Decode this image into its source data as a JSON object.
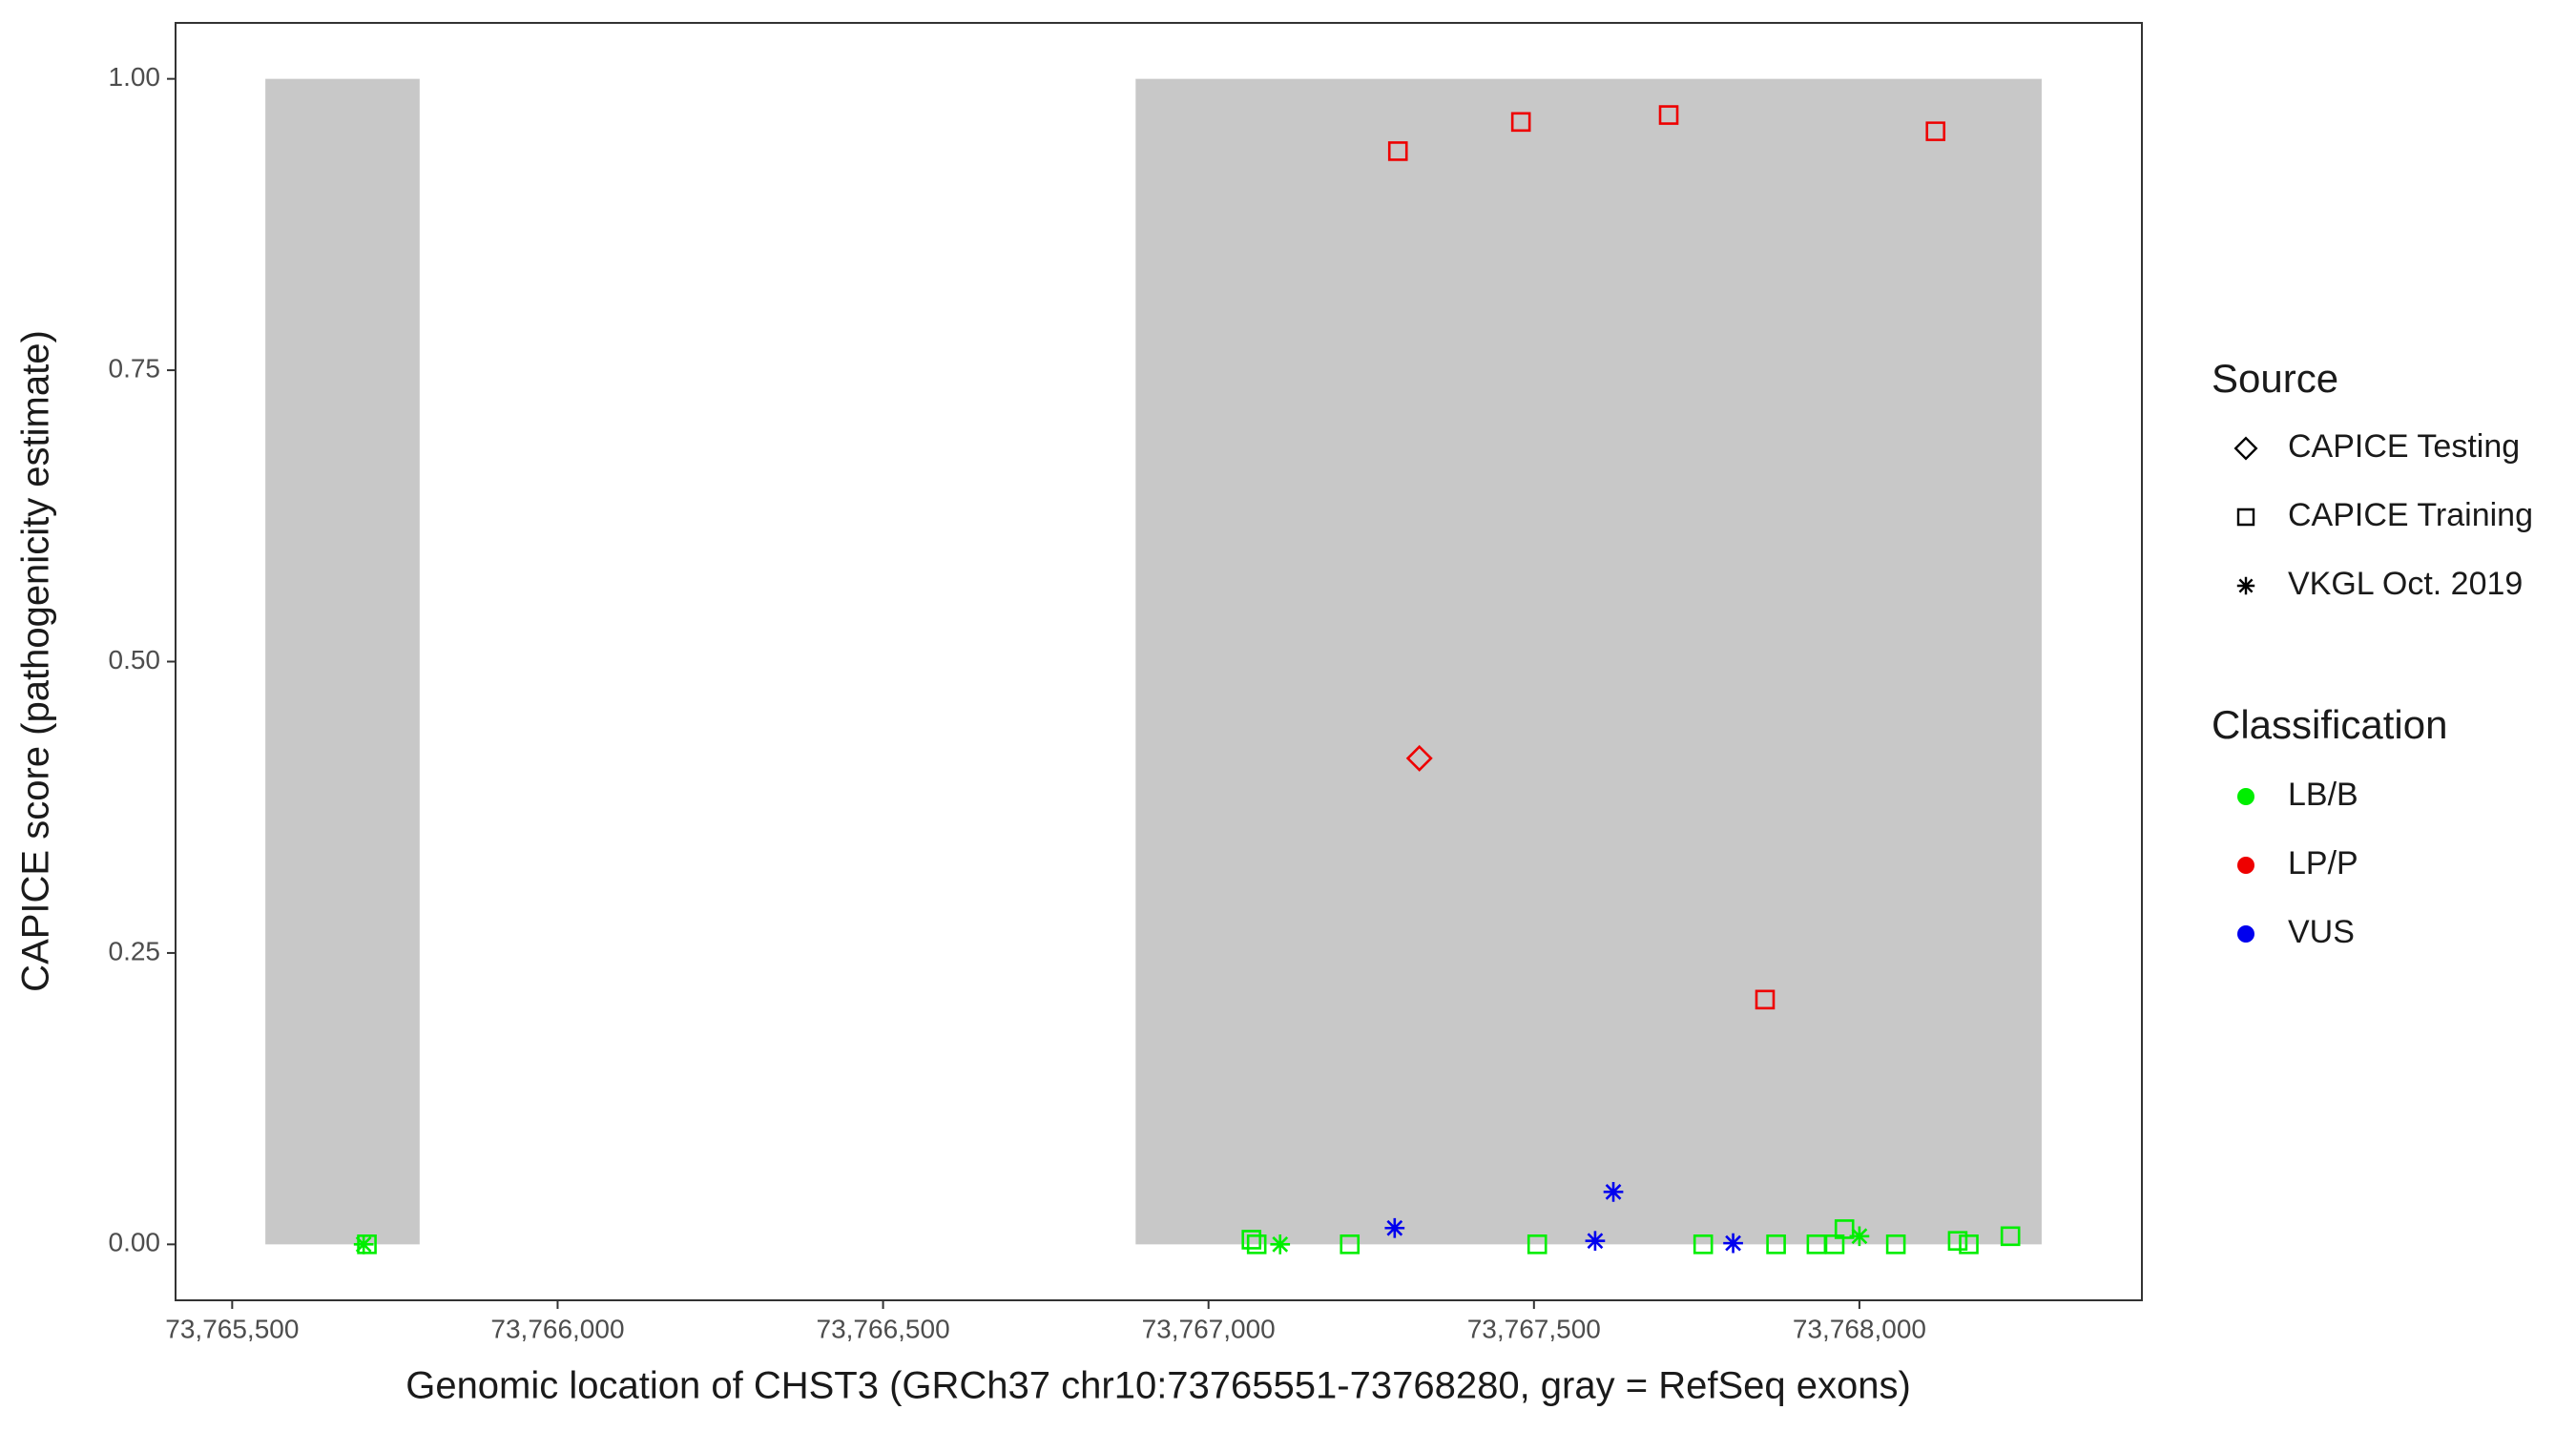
{
  "chart_data": {
    "type": "scatter",
    "x_label": "Genomic location of CHST3 (GRCh37 chr10:73765551-73768280, gray = RefSeq exons)",
    "y_label": "CAPICE score (pathogenicity estimate)",
    "xlim": [
      73765413,
      73768434
    ],
    "ylim": [
      -0.048,
      1.048
    ],
    "xticks": [
      {
        "value": 73765500,
        "label": "73,765,500"
      },
      {
        "value": 73766000,
        "label": "73,766,000"
      },
      {
        "value": 73766500,
        "label": "73,766,500"
      },
      {
        "value": 73767000,
        "label": "73,767,000"
      },
      {
        "value": 73767500,
        "label": "73,767,500"
      },
      {
        "value": 73768000,
        "label": "73,768,000"
      }
    ],
    "yticks": [
      {
        "value": 0,
        "label": "0.00"
      },
      {
        "value": 0.25,
        "label": "0.25"
      },
      {
        "value": 0.5,
        "label": "0.50"
      },
      {
        "value": 0.75,
        "label": "0.75"
      },
      {
        "value": 1,
        "label": "1.00"
      }
    ],
    "exons": {
      "color": "#c8c8c8",
      "ymin": 0,
      "ymax": 1,
      "ranges": [
        [
          73765551,
          73765788
        ],
        [
          73766888,
          73768280
        ]
      ]
    },
    "shape_legend": {
      "title": "Source",
      "entries": [
        {
          "name": "CAPICE Testing",
          "shape": "diamond"
        },
        {
          "name": "CAPICE Training",
          "shape": "square"
        },
        {
          "name": "VKGL Oct. 2019",
          "shape": "star"
        }
      ]
    },
    "color_legend": {
      "title": "Classification",
      "entries": [
        {
          "name": "LB/B",
          "color": "#00ee00"
        },
        {
          "name": "LP/P",
          "color": "#ee0000"
        },
        {
          "name": "VUS",
          "color": "#0000ee"
        }
      ]
    },
    "series": [
      {
        "shape": "square",
        "color": "#ee0000",
        "x": [
          73767291,
          73767480,
          73767707,
          73768117,
          73767855
        ],
        "y": [
          0.938,
          0.963,
          0.969,
          0.955,
          0.21
        ]
      },
      {
        "shape": "diamond",
        "color": "#ee0000",
        "x": [
          73767324
        ],
        "y": [
          0.417
        ]
      },
      {
        "shape": "square",
        "color": "#00ee00",
        "x": [
          73765707,
          73767066,
          73767074,
          73767217,
          73767505,
          73767760,
          73767872,
          73767934,
          73767962,
          73767977,
          73768056,
          73768151,
          73768168,
          73768232
        ],
        "y": [
          0,
          0.004,
          0,
          0,
          0,
          0,
          0,
          0,
          0,
          0.013,
          0,
          0.003,
          0,
          0.007
        ]
      },
      {
        "shape": "star",
        "color": "#00ee00",
        "x": [
          73765702,
          73767110,
          73768000
        ],
        "y": [
          0,
          0,
          0.007
        ]
      },
      {
        "shape": "star",
        "color": "#0000ee",
        "x": [
          73767286,
          73767594,
          73767622,
          73767806
        ],
        "y": [
          0.014,
          0.003,
          0.045,
          0.001
        ]
      }
    ]
  }
}
